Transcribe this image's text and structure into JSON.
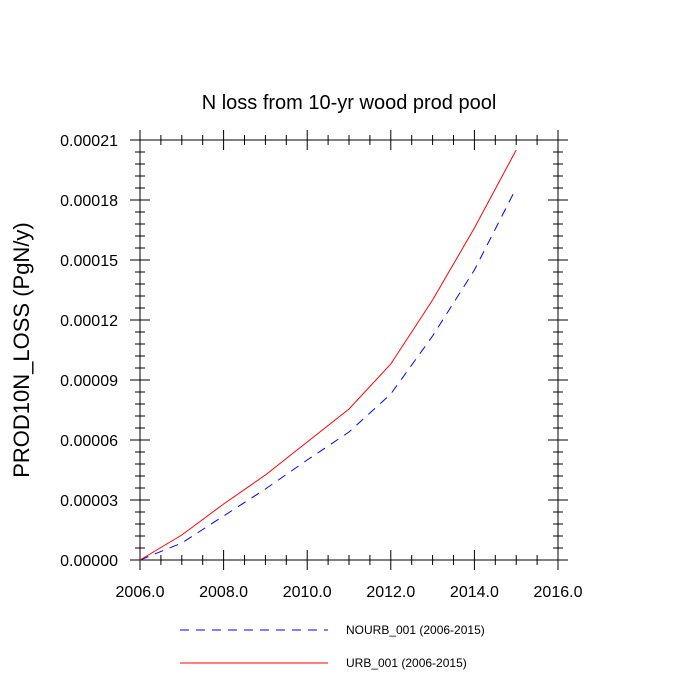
{
  "chart_data": {
    "type": "line",
    "title": "N loss from 10-yr wood prod pool",
    "xlabel": "",
    "ylabel": "PROD10N_LOSS  (PgN/y)",
    "xlim": [
      2006,
      2016
    ],
    "ylim": [
      0,
      0.00021
    ],
    "x_ticks": [
      2006,
      2008,
      2010,
      2012,
      2014,
      2016
    ],
    "x_tick_labels": [
      "2006.0",
      "2008.0",
      "2010.0",
      "2012.0",
      "2014.0",
      "2016.0"
    ],
    "y_ticks": [
      0,
      3e-05,
      6e-05,
      9e-05,
      0.00012,
      0.00015,
      0.00018,
      0.00021
    ],
    "y_tick_labels": [
      "0.00000",
      "0.00003",
      "0.00006",
      "0.00009",
      "0.00012",
      "0.00015",
      "0.00018",
      "0.00021"
    ],
    "grid": false,
    "legend_position": "bottom",
    "x": [
      2006,
      2007,
      2008,
      2009,
      2010,
      2011,
      2012,
      2013,
      2014,
      2015
    ],
    "series": [
      {
        "name": "NOURB_001 (2006-2015)",
        "color": "#0000ff",
        "dash": "dashed",
        "values": [
          0,
          8.5e-06,
          2.2e-05,
          3.55e-05,
          5e-05,
          6.4e-05,
          8.3e-05,
          0.000112,
          0.000145,
          0.000186
        ]
      },
      {
        "name": "URB_001 (2006-2015)",
        "color": "#ff0000",
        "dash": "solid",
        "values": [
          0,
          1.25e-05,
          2.8e-05,
          4.25e-05,
          5.9e-05,
          7.55e-05,
          9.8e-05,
          0.00013,
          0.000166,
          0.000205
        ]
      }
    ]
  }
}
